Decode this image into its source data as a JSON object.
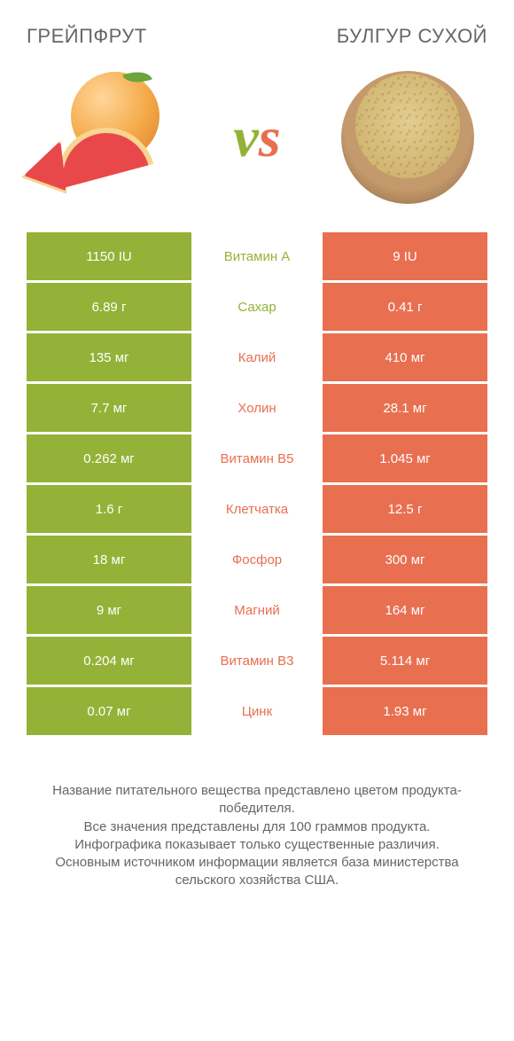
{
  "colors": {
    "green": "#94b237",
    "orange": "#e96f51",
    "text": "#666666",
    "white": "#ffffff",
    "grapefruit_outer": "#f4a948",
    "grapefruit_rind": "#f8d590",
    "grapefruit_flesh": "#e9484a",
    "leaf": "#6fa33b",
    "bowl_outer": "#c49a6c",
    "bowl_rim_shadow": "#7a5a3a",
    "bulgur": "#e3cc8f"
  },
  "header": {
    "left": "ГРЕЙПФРУТ",
    "right": "БУЛГУР СУХОЙ",
    "vs": "vs"
  },
  "rows": [
    {
      "label": "Витамин A",
      "left": "1150 IU",
      "right": "9 IU",
      "winner": "left"
    },
    {
      "label": "Сахар",
      "left": "6.89 г",
      "right": "0.41 г",
      "winner": "left"
    },
    {
      "label": "Калий",
      "left": "135 мг",
      "right": "410 мг",
      "winner": "right"
    },
    {
      "label": "Холин",
      "left": "7.7 мг",
      "right": "28.1 мг",
      "winner": "right"
    },
    {
      "label": "Витамин B5",
      "left": "0.262 мг",
      "right": "1.045 мг",
      "winner": "right"
    },
    {
      "label": "Клетчатка",
      "left": "1.6 г",
      "right": "12.5 г",
      "winner": "right"
    },
    {
      "label": "Фосфор",
      "left": "18 мг",
      "right": "300 мг",
      "winner": "right"
    },
    {
      "label": "Магний",
      "left": "9 мг",
      "right": "164 мг",
      "winner": "right"
    },
    {
      "label": "Витамин B3",
      "left": "0.204 мг",
      "right": "5.114 мг",
      "winner": "right"
    },
    {
      "label": "Цинк",
      "left": "0.07 мг",
      "right": "1.93 мг",
      "winner": "right"
    }
  ],
  "footnote": "Название питательного вещества представлено цветом продукта-победителя.\nВсе значения представлены для 100 граммов продукта.\nИнфографика показывает только существенные различия.\nОсновным источником информации является база министерства сельского хозяйства США."
}
